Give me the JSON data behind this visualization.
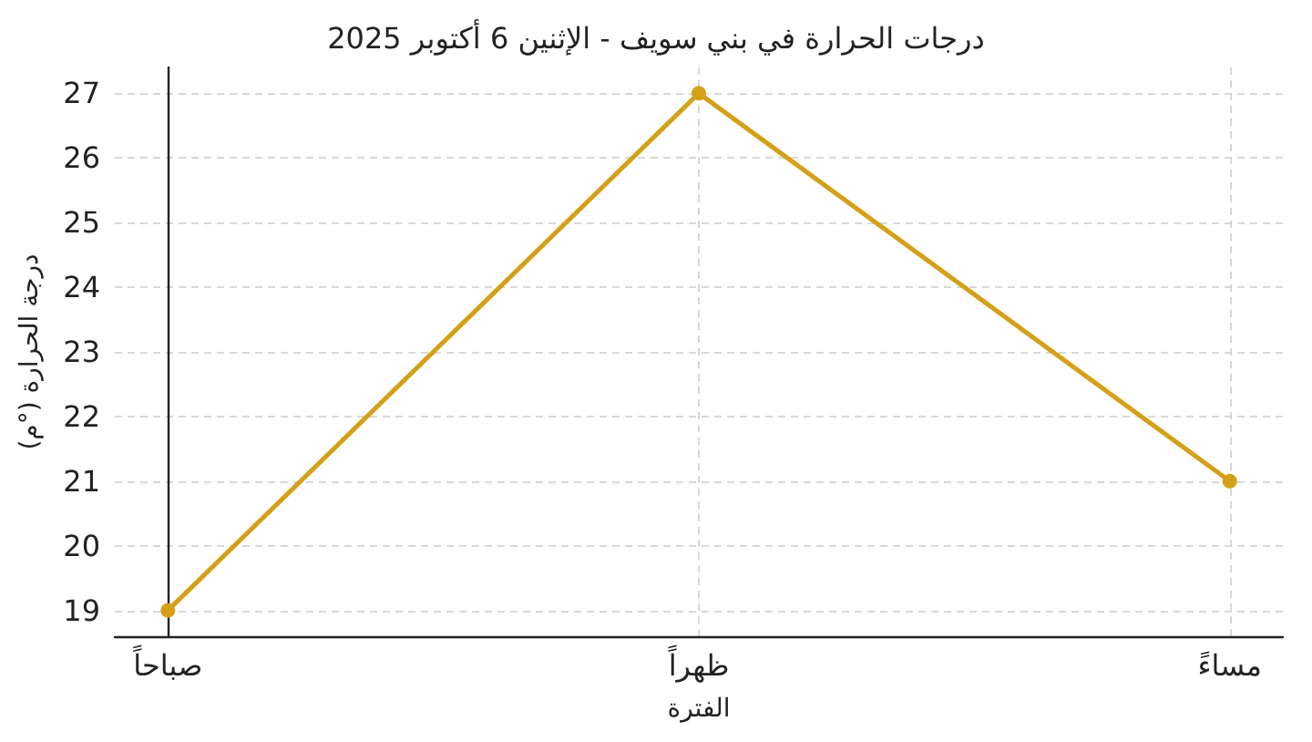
{
  "chart_data": {
    "type": "line",
    "title": "درجات الحرارة في بني سويف - الإثنين 6 أكتوبر 2025",
    "xlabel": "الفترة",
    "ylabel": "درجة الحرارة (°م)",
    "categories": [
      "صباحاً",
      "ظهراً",
      "مساءً"
    ],
    "series": [
      {
        "color": "#d4a017",
        "values": [
          19,
          27,
          21
        ]
      }
    ],
    "ylim": [
      18.6,
      27.4
    ],
    "yticks": [
      19,
      20,
      21,
      22,
      23,
      24,
      25,
      26,
      27
    ],
    "grid": true,
    "marker": "circle",
    "line_style": "solid"
  }
}
